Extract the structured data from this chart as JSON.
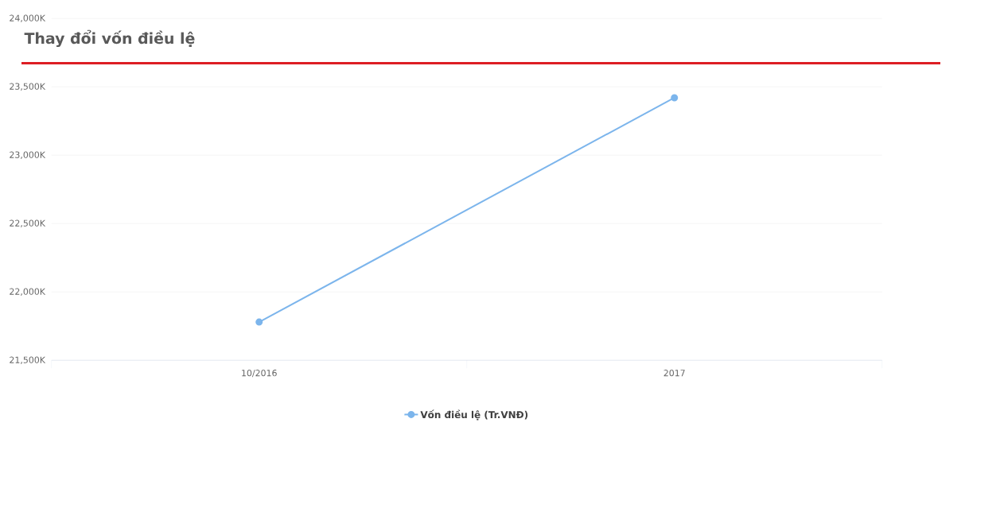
{
  "chart_data": {
    "type": "line",
    "title": "Thay đổi vốn điều lệ",
    "categories": [
      "10/2016",
      "2017"
    ],
    "series": [
      {
        "name": "Vốn điều lệ (Tr.VNĐ)",
        "color": "#7cb5ec",
        "values": [
          21780,
          23420
        ]
      }
    ],
    "ylim": [
      21500,
      24000
    ],
    "yticks": [
      {
        "value": 21500,
        "label": "21,500K"
      },
      {
        "value": 22000,
        "label": "22,000K"
      },
      {
        "value": 22500,
        "label": "22,500K"
      },
      {
        "value": 23000,
        "label": "23,000K"
      },
      {
        "value": 23500,
        "label": "23,500K"
      },
      {
        "value": 24000,
        "label": "24,000K"
      }
    ],
    "grid": "y",
    "legend": "bottom",
    "marker": "circle",
    "line_style": "solid"
  }
}
